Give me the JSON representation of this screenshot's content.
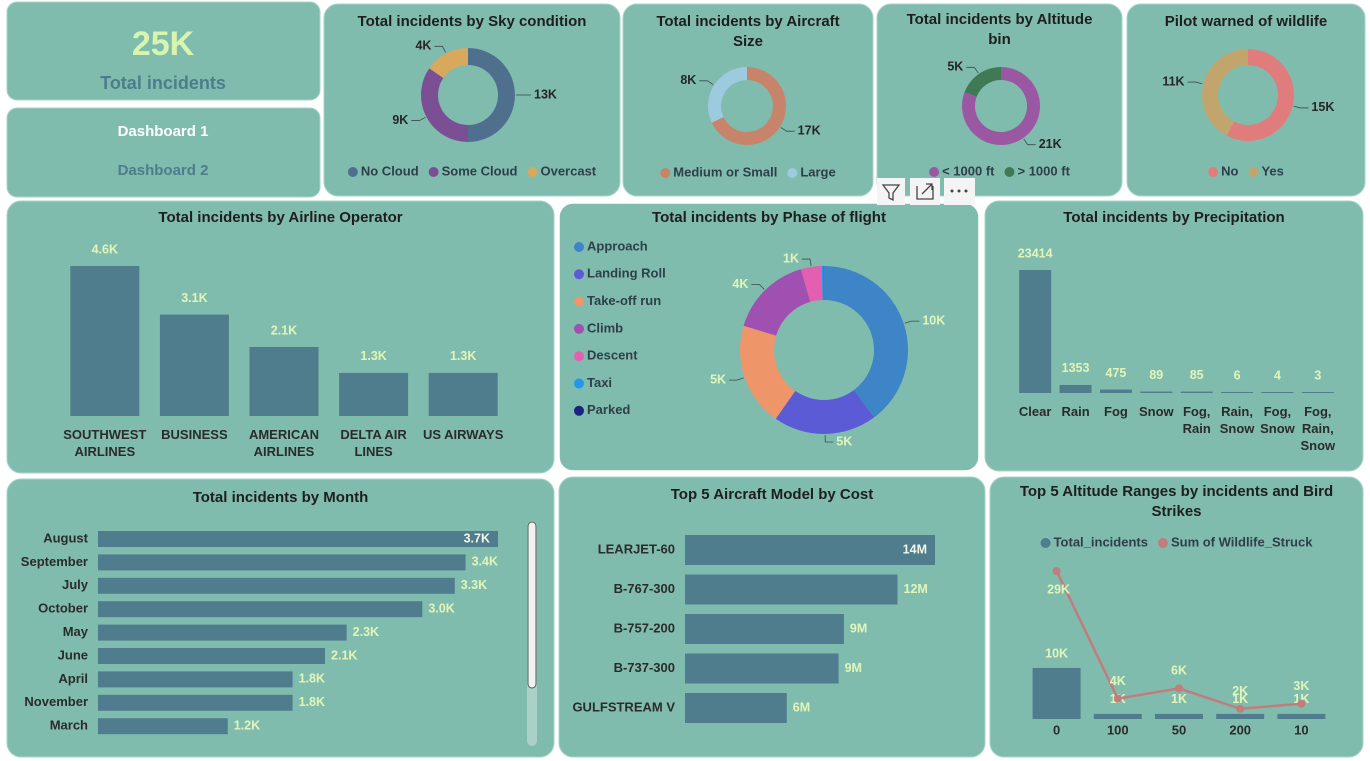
{
  "kpi": {
    "value": "25K",
    "label": "Total incidents"
  },
  "nav": [
    "Dashboard 1",
    "Dashboard 2"
  ],
  "chart_data": [
    {
      "type": "donut",
      "title": "Total incidents by Sky condition",
      "categories": [
        "No Cloud",
        "Some Cloud",
        "Overcast"
      ],
      "values": [
        13000,
        9000,
        4000
      ],
      "value_labels": [
        "13K",
        "9K",
        "4K"
      ],
      "colors": [
        "#4f6f8f",
        "#7b4f94",
        "#d8a85c"
      ],
      "legend": "bottom",
      "label_color": "#262626"
    },
    {
      "type": "donut",
      "title": "Total incidents by Aircraft Size",
      "categories": [
        "Medium or Small",
        "Large"
      ],
      "values": [
        17000,
        8000
      ],
      "value_labels": [
        "17K",
        "8K"
      ],
      "colors": [
        "#c8846a",
        "#9ccbe0"
      ],
      "legend": "bottom",
      "label_color": "#262626"
    },
    {
      "type": "donut",
      "title": "Total incidents by Altitude bin",
      "categories": [
        "< 1000 ft",
        "> 1000 ft"
      ],
      "values": [
        21000,
        5000
      ],
      "value_labels": [
        "21K",
        "5K"
      ],
      "colors": [
        "#9a58a3",
        "#3f7a55"
      ],
      "legend": "bottom",
      "label_color": "#262626"
    },
    {
      "type": "donut",
      "title": "Pilot warned of wildlife",
      "categories": [
        "No",
        "Yes"
      ],
      "values": [
        15000,
        11000
      ],
      "value_labels": [
        "15K",
        "11K"
      ],
      "colors": [
        "#e07c7c",
        "#c2a56c"
      ],
      "legend": "bottom",
      "label_color": "#262626"
    },
    {
      "type": "bar",
      "title": "Total incidents by Airline Operator",
      "orientation": "vertical",
      "categories": [
        "SOUTHWEST AIRLINES",
        "BUSINESS",
        "AMERICAN AIRLINES",
        "DELTA AIR LINES",
        "US AIRWAYS"
      ],
      "values": [
        4600,
        3100,
        2100,
        1300,
        1300
      ],
      "value_labels": [
        "4.6K",
        "3.1K",
        "2.1K",
        "1.3K",
        "1.3K"
      ],
      "color": "#4f7d8e",
      "label_color": "#e2f5b8"
    },
    {
      "type": "donut",
      "title": "Total incidents by Phase of flight",
      "categories": [
        "Approach",
        "Landing Roll",
        "Take-off run",
        "Climb",
        "Descent",
        "Taxi",
        "Parked"
      ],
      "values": [
        10000,
        5000,
        5000,
        4000,
        1000,
        100,
        10
      ],
      "value_labels": [
        "10K",
        "5K",
        "5K",
        "4K",
        "1K",
        null,
        null
      ],
      "colors": [
        "#3d85c6",
        "#5b5bd6",
        "#ef956a",
        "#a050b0",
        "#e35fb0",
        "#2196f3",
        "#1a237e"
      ],
      "legend": "left",
      "label_color": "#e2f5b8"
    },
    {
      "type": "bar",
      "title": "Total incidents by Precipitation",
      "orientation": "vertical",
      "categories": [
        "Clear",
        "Rain",
        "Fog",
        "Snow",
        "Fog, Rain",
        "Rain, Snow",
        "Fog, Snow",
        "Fog, Rain, Snow"
      ],
      "values": [
        23414,
        1353,
        475,
        89,
        85,
        6,
        4,
        3
      ],
      "color": "#4f7d8e",
      "label_color": "#e2f5b8"
    },
    {
      "type": "bar",
      "title": "Total incidents by Month",
      "orientation": "horizontal",
      "categories": [
        "August",
        "September",
        "July",
        "October",
        "May",
        "June",
        "April",
        "November",
        "March"
      ],
      "values": [
        3700,
        3400,
        3300,
        3000,
        2300,
        2100,
        1800,
        1800,
        1200
      ],
      "value_labels": [
        "3.7K",
        "3.4K",
        "3.3K",
        "3.0K",
        "2.3K",
        "2.1K",
        "1.8K",
        "1.8K",
        "1.2K"
      ],
      "color": "#4f7d8e",
      "label_color": "#e2f5b8"
    },
    {
      "type": "bar",
      "title": "Top 5 Aircraft Model by Cost",
      "orientation": "horizontal",
      "categories": [
        "LEARJET-60",
        "B-767-300",
        "B-757-200",
        "B-737-300",
        "GULFSTREAM V"
      ],
      "values": [
        14000000,
        11900000,
        8900000,
        8600000,
        5700000
      ],
      "value_labels": [
        "14M",
        "12M",
        "9M",
        "9M",
        "6M"
      ],
      "color": "#4f7d8e",
      "label_color": "#e2f5b8"
    },
    {
      "type": "combo",
      "title": "Top 5 Altitude Ranges by incidents and Bird Strikes",
      "categories": [
        "0",
        "100",
        "50",
        "200",
        "10"
      ],
      "series": [
        {
          "name": "Total_incidents",
          "type": "bar",
          "color": "#4f7d8e",
          "values": [
            10000,
            1000,
            1000,
            1000,
            1000
          ],
          "value_labels": [
            "10K",
            "1K",
            "1K",
            "1K",
            "1K"
          ]
        },
        {
          "name": "Sum of Wildlife_Struck",
          "type": "line",
          "color": "#c27c7c",
          "values": [
            29000,
            4000,
            6000,
            2000,
            3000
          ],
          "value_labels": [
            "29K",
            "4K",
            "6K",
            "2K",
            "3K"
          ]
        }
      ],
      "legend": "top",
      "label_color": "#e2f5b8"
    }
  ]
}
